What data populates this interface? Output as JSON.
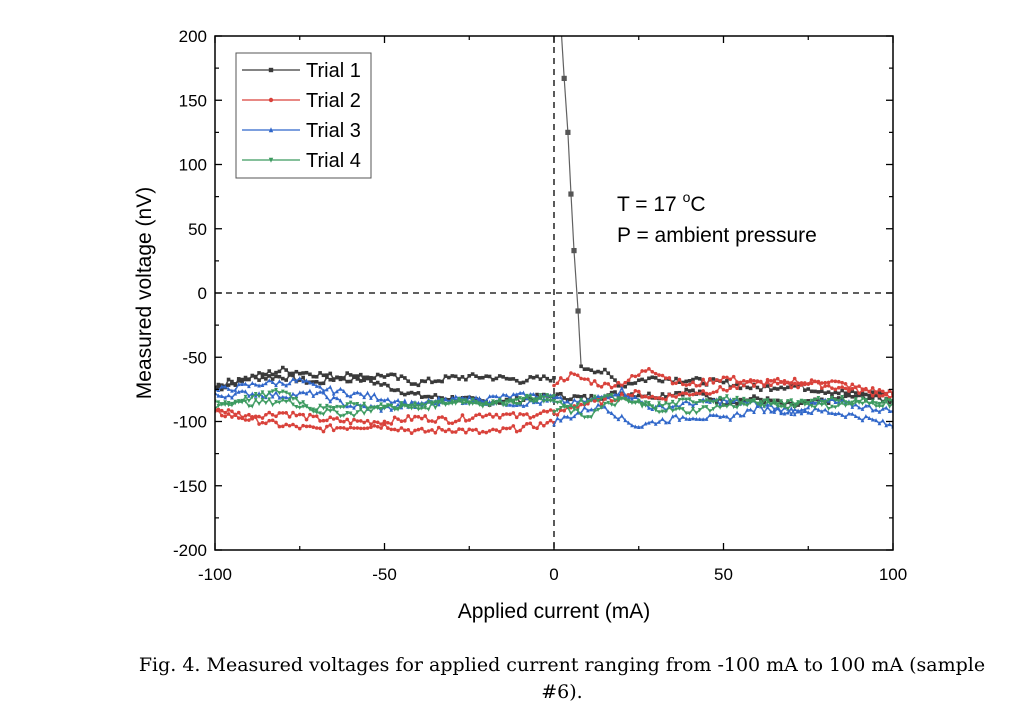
{
  "chart_data": {
    "type": "line",
    "title": "",
    "xlabel": "Applied current (mA)",
    "ylabel": "Measured voltage (nV)",
    "xlim": [
      -100,
      100
    ],
    "ylim": [
      -200,
      200
    ],
    "xticks": [
      -100,
      -50,
      0,
      50,
      100
    ],
    "yticks": [
      -200,
      -150,
      -100,
      -50,
      0,
      50,
      100,
      150,
      200
    ],
    "xtick_labels": [
      "-100",
      "-50",
      "0",
      "50",
      "100"
    ],
    "ytick_labels": [
      "-200",
      "-150",
      "-100",
      "-50",
      "0",
      "50",
      "100",
      "150",
      "200"
    ],
    "grid": false,
    "legend_position": "top-left",
    "reference_lines": [
      {
        "orientation": "horizontal",
        "value": 0,
        "style": "dashed"
      },
      {
        "orientation": "vertical",
        "value": 0,
        "style": "dashed"
      }
    ],
    "annotations": [
      {
        "text_parts": [
          "T = 17 ",
          "o",
          "C"
        ],
        "text": "T = 17 °C",
        "position": "right-center"
      },
      {
        "text": "P = ambient pressure",
        "position": "right-center"
      }
    ],
    "series": [
      {
        "name": "Trial 1",
        "color": "#3a3a3a",
        "marker": "square",
        "segments": [
          {
            "x": [
              -100,
              -90,
              -80,
              -70,
              -60,
              -50,
              -40,
              -30,
              -20,
              -10,
              0,
              10,
              20,
              30,
              40,
              50,
              60,
              70,
              80,
              90,
              100
            ],
            "y": [
              -75,
              -66,
              -65,
              -70,
              -63,
              -72,
              -80,
              -82,
              -85,
              -83,
              -80,
              -82,
              -78,
              -80,
              -76,
              -85,
              -82,
              -88,
              -84,
              -80,
              -84
            ]
          },
          {
            "x": [
              -100,
              -90,
              -80,
              -70,
              -60,
              -50,
              -40,
              -30,
              -20,
              -10,
              0
            ],
            "y": [
              -72,
              -66,
              -60,
              -63,
              -67,
              -64,
              -70,
              -66,
              -65,
              -68,
              -66
            ]
          },
          {
            "x": [
              0,
              1,
              2,
              3,
              4.1,
              5,
              5.9,
              7.1,
              8,
              10,
              15,
              20,
              25,
              30,
              40,
              50,
              60,
              70,
              80,
              90,
              100
            ],
            "y": [
              250,
              230,
              210,
              167,
              125,
              77,
              33,
              -14,
              -59,
              -58,
              -62,
              -72,
              -68,
              -66,
              -68,
              -70,
              -74,
              -72,
              -76,
              -79,
              -78
            ]
          }
        ]
      },
      {
        "name": "Trial 2",
        "color": "#d9423b",
        "marker": "circle",
        "segments": [
          {
            "x": [
              -100,
              -90,
              -80,
              -70,
              -60,
              -50,
              -40,
              -30,
              -20,
              -10,
              0
            ],
            "y": [
              -90,
              -96,
              -93,
              -98,
              -100,
              -100,
              -97,
              -99,
              -94,
              -96,
              -92
            ]
          },
          {
            "x": [
              -100,
              -90,
              -80,
              -70,
              -60,
              -50,
              -40,
              -30,
              -20,
              -10,
              0
            ],
            "y": [
              -93,
              -98,
              -103,
              -106,
              -104,
              -103,
              -108,
              -106,
              -109,
              -105,
              -101
            ]
          },
          {
            "x": [
              0,
              5,
              10,
              15,
              20,
              25,
              28,
              35,
              40,
              50,
              60,
              70,
              80,
              90,
              100
            ],
            "y": [
              -70,
              -64,
              -68,
              -72,
              -70,
              -64,
              -58,
              -68,
              -72,
              -66,
              -70,
              -72,
              -68,
              -74,
              -78
            ]
          },
          {
            "x": [
              0,
              5,
              10,
              15,
              20,
              25,
              30,
              35,
              40,
              50,
              60,
              70,
              80,
              90,
              100
            ],
            "y": [
              -96,
              -88,
              -86,
              -84,
              -80,
              -78,
              -82,
              -80,
              -78,
              -75,
              -70,
              -68,
              -72,
              -76,
              -80
            ]
          }
        ]
      },
      {
        "name": "Trial 3",
        "color": "#2f66c9",
        "marker": "triangle",
        "segments": [
          {
            "x": [
              -100,
              -95,
              -90,
              -85,
              -80,
              -75,
              -70,
              -60,
              -50,
              -40,
              -30,
              -20,
              -10,
              0
            ],
            "y": [
              -76,
              -74,
              -72,
              -70,
              -70,
              -68,
              -74,
              -78,
              -82,
              -88,
              -84,
              -82,
              -80,
              -80
            ]
          },
          {
            "x": [
              -100,
              -90,
              -80,
              -70,
              -60,
              -50,
              -40,
              -30,
              -20,
              -10,
              0
            ],
            "y": [
              -80,
              -78,
              -80,
              -78,
              -88,
              -90,
              -86,
              -82,
              -84,
              -86,
              -84
            ]
          },
          {
            "x": [
              0,
              5,
              10,
              15,
              20,
              25,
              30,
              40,
              50,
              60,
              70,
              80,
              90,
              100
            ],
            "y": [
              -82,
              -86,
              -84,
              -80,
              -76,
              -84,
              -90,
              -86,
              -84,
              -86,
              -92,
              -84,
              -88,
              -92
            ]
          },
          {
            "x": [
              0,
              5,
              10,
              15,
              20,
              25,
              30,
              40,
              50,
              60,
              70,
              80,
              90,
              100
            ],
            "y": [
              -100,
              -96,
              -90,
              -88,
              -98,
              -104,
              -100,
              -96,
              -98,
              -90,
              -92,
              -92,
              -96,
              -104
            ]
          }
        ]
      },
      {
        "name": "Trial 4",
        "color": "#3c9a5f",
        "marker": "inverted-triangle",
        "segments": [
          {
            "x": [
              -100,
              -90,
              -80,
              -70,
              -60,
              -50,
              -40,
              -30,
              -20,
              -10,
              0
            ],
            "y": [
              -84,
              -86,
              -84,
              -90,
              -86,
              -90,
              -86,
              -84,
              -86,
              -82,
              -84
            ]
          },
          {
            "x": [
              -100,
              -90,
              -80,
              -75,
              -70,
              -60,
              -50,
              -40,
              -30,
              -20,
              -10,
              0
            ],
            "y": [
              -88,
              -82,
              -76,
              -84,
              -92,
              -94,
              -88,
              -90,
              -84,
              -86,
              -84,
              -80
            ]
          },
          {
            "x": [
              0,
              5,
              10,
              15,
              20,
              25,
              30,
              40,
              50,
              60,
              70,
              80,
              90,
              100
            ],
            "y": [
              -84,
              -92,
              -96,
              -88,
              -84,
              -86,
              -90,
              -92,
              -88,
              -86,
              -84,
              -88,
              -86,
              -86
            ]
          },
          {
            "x": [
              0,
              5,
              10,
              15,
              20,
              30,
              40,
              50,
              60,
              70,
              80,
              90,
              100
            ],
            "y": [
              -92,
              -88,
              -84,
              -80,
              -84,
              -88,
              -84,
              -82,
              -86,
              -88,
              -82,
              -84,
              -84
            ]
          }
        ]
      }
    ]
  },
  "caption": {
    "line1": "Fig. 4. Measured voltages for applied current ranging from -100 mA to 100 mA (sample",
    "line2": "#6)."
  }
}
